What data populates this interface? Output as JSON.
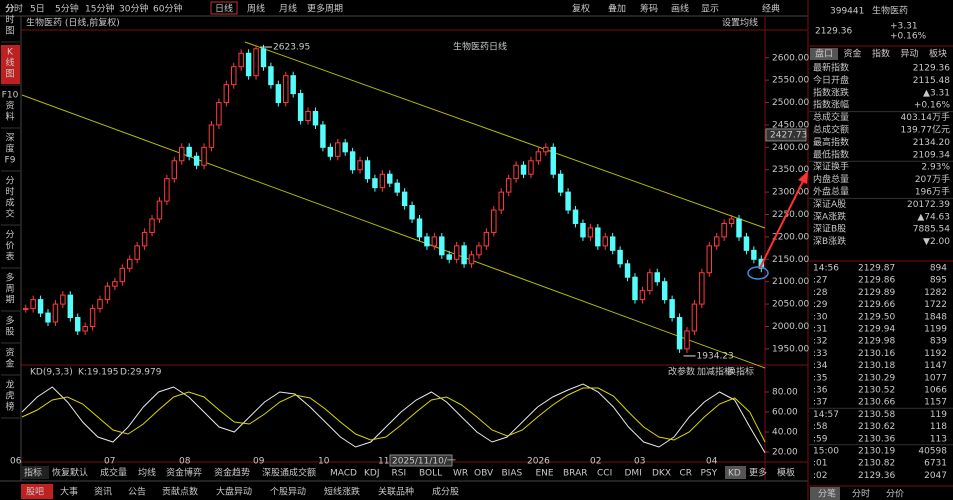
{
  "toolbar": {
    "left": [
      "分时",
      "5日",
      "5分钟",
      "15分钟",
      "30分钟",
      "60分钟",
      "日线",
      "周线",
      "月线",
      "更多周期"
    ],
    "right": [
      "复权",
      "叠加",
      "筹码",
      "画线",
      "显示",
      "经典"
    ]
  },
  "sidebar": [
    [
      "分",
      "时",
      "图"
    ],
    [
      "K",
      "线",
      "图"
    ],
    [
      "F10",
      "资",
      "料"
    ],
    [
      "深",
      "度",
      "F9"
    ],
    [
      "分",
      "时",
      "成",
      "交"
    ],
    [
      "分",
      "价",
      "表"
    ],
    [
      "多",
      "周",
      "期"
    ],
    [
      "多",
      "股"
    ],
    [
      "资",
      "金"
    ],
    [
      "龙",
      "虎",
      "榜"
    ]
  ],
  "chart": {
    "header": "生物医药 (日线,前复权)",
    "settings": "设置均线",
    "title": "生物医药日线",
    "price_label": 2427.73,
    "high_note": 2623.95,
    "low_note": 1934.23,
    "ylim": [
      1914,
      2662
    ],
    "yticks": [
      {
        "value": 1950,
        "label": "1950.00"
      },
      {
        "value": 2000,
        "label": "2000.00"
      },
      {
        "value": 2050,
        "label": "2050.00"
      },
      {
        "value": 2100,
        "label": "2100.00"
      },
      {
        "value": 2150,
        "label": "2150.00"
      },
      {
        "value": 2200,
        "label": "2200.00"
      },
      {
        "value": 2250,
        "label": "2250.00"
      },
      {
        "value": 2300,
        "label": "2300.00"
      },
      {
        "value": 2350,
        "label": "2350.00"
      },
      {
        "value": 2400,
        "label": "2400.00"
      },
      {
        "value": 2450,
        "label": "2450.00"
      },
      {
        "value": 2500,
        "label": "2500.00"
      },
      {
        "value": 2550,
        "label": "2550.00"
      },
      {
        "value": 2600,
        "label": "2600.00"
      }
    ],
    "up_color": "#ff3c3c",
    "down_color": "#54fcfc",
    "closes": [
      2040,
      2060,
      2030,
      2010,
      2050,
      2070,
      2020,
      1990,
      2000,
      2040,
      2060,
      2090,
      2100,
      2130,
      2150,
      2180,
      2210,
      2240,
      2280,
      2330,
      2370,
      2400,
      2380,
      2360,
      2400,
      2450,
      2500,
      2540,
      2580,
      2610,
      2560,
      2620,
      2580,
      2540,
      2500,
      2560,
      2520,
      2460,
      2480,
      2450,
      2400,
      2380,
      2410,
      2390,
      2350,
      2370,
      2330,
      2310,
      2340,
      2320,
      2300,
      2270,
      2240,
      2200,
      2180,
      2200,
      2160,
      2150,
      2180,
      2140,
      2160,
      2180,
      2210,
      2260,
      2300,
      2330,
      2360,
      2340,
      2370,
      2390,
      2400,
      2340,
      2300,
      2260,
      2230,
      2200,
      2220,
      2180,
      2200,
      2170,
      2140,
      2110,
      2060,
      2080,
      2120,
      2100,
      2060,
      2020,
      1950,
      1990,
      2050,
      2120,
      2180,
      2200,
      2230,
      2240,
      2200,
      2170,
      2150,
      2130
    ]
  },
  "kd": {
    "name": "KD(9,3,3)",
    "k_label": "K:19.195",
    "d_label": "D:29.979",
    "actions": [
      "改参数",
      "加减指标",
      "换指标"
    ],
    "ylim": [
      10,
      100
    ],
    "yticks": [
      {
        "value": 80,
        "label": "80.00"
      },
      {
        "value": 60,
        "label": "60.00"
      },
      {
        "value": 40,
        "label": "40.00"
      },
      {
        "value": 20,
        "label": "20.00"
      }
    ],
    "k_color": "#e8e8e8",
    "d_color": "#d8d800",
    "k": [
      60,
      75,
      85,
      70,
      50,
      35,
      30,
      45,
      65,
      80,
      85,
      75,
      60,
      45,
      40,
      55,
      70,
      80,
      78,
      65,
      50,
      35,
      25,
      30,
      45,
      60,
      72,
      80,
      70,
      55,
      40,
      30,
      35,
      50,
      65,
      75,
      82,
      88,
      80,
      65,
      45,
      30,
      25,
      35,
      55,
      70,
      80,
      72,
      45,
      19.195
    ],
    "d": [
      55,
      62,
      72,
      75,
      68,
      55,
      42,
      38,
      48,
      62,
      75,
      80,
      75,
      62,
      50,
      48,
      58,
      70,
      77,
      74,
      63,
      50,
      38,
      32,
      35,
      47,
      60,
      72,
      75,
      67,
      55,
      42,
      36,
      42,
      55,
      67,
      77,
      84,
      84,
      76,
      60,
      45,
      35,
      32,
      40,
      55,
      68,
      74,
      60,
      29.979
    ]
  },
  "x_labels": [
    "06",
    "07",
    "08",
    "09",
    "10",
    "11",
    "2025/11/10/一",
    "2026",
    "02",
    "03",
    "04"
  ],
  "indicator_tabs": [
    "指标",
    "恢复默认",
    "成交量",
    "均线",
    "资金博弈",
    "资金趋势",
    "深股通成交额",
    "MACD",
    "KDJ",
    "RSI",
    "BOLL",
    "WR",
    "OBV",
    "BIAS",
    "ENE",
    "BRAR",
    "CCI",
    "DMI",
    "DKX",
    "CR",
    "PSY",
    "KD",
    "更多",
    "模板"
  ],
  "bottom_tabs": [
    "股吧",
    "大事",
    "资讯",
    "公告",
    "贡献点数",
    "大盘异动",
    "个股异动",
    "短线涨跌",
    "关联品种",
    "成分股"
  ],
  "quote": {
    "code": "399441",
    "name": "生物医药",
    "price": "2129.36",
    "change": "+3.31",
    "pct": "+0.16%",
    "tabs": [
      "盘口",
      "资金",
      "指数",
      "异动",
      "板块"
    ],
    "rows": [
      [
        "最新指数",
        "2129.36"
      ],
      [
        "今日开盘",
        "2115.48"
      ],
      [
        "指数涨跌",
        "▲3.31"
      ],
      [
        "指数涨幅",
        "+0.16%"
      ],
      [
        "总成交量",
        "403.14万手"
      ],
      [
        "总成交额",
        "139.77亿元"
      ],
      [
        "最高指数",
        "2134.20"
      ],
      [
        "最低指数",
        "2109.34"
      ],
      [
        "深证换手",
        "2.93%"
      ],
      [
        "内盘总量",
        "207万手"
      ],
      [
        "外盘总量",
        "196万手"
      ],
      [
        "深证A股",
        "20172.39"
      ],
      [
        "深A涨跌",
        "▲74.63"
      ],
      [
        "深证B股",
        "7885.54"
      ],
      [
        "深B涨跌",
        "▼2.00"
      ]
    ],
    "ticks": [
      [
        "14:56",
        "2129.87",
        "894"
      ],
      [
        ":27",
        "2129.86",
        "895"
      ],
      [
        ":28",
        "2129.89",
        "1282"
      ],
      [
        ":29",
        "2129.66",
        "1722"
      ],
      [
        ":30",
        "2129.50",
        "1848"
      ],
      [
        ":31",
        "2129.94",
        "1199"
      ],
      [
        ":32",
        "2129.98",
        "839"
      ],
      [
        ":33",
        "2130.16",
        "1192"
      ],
      [
        ":34",
        "2130.18",
        "1147"
      ],
      [
        ":35",
        "2130.29",
        "1077"
      ],
      [
        ":36",
        "2130.52",
        "1066"
      ],
      [
        ":37",
        "2130.66",
        "1157"
      ],
      [
        "14:57",
        "2130.58",
        "119"
      ],
      [
        ":58",
        "2130.62",
        "118"
      ],
      [
        ":59",
        "2130.36",
        "113"
      ],
      [
        "15:00",
        "2130.19",
        "40598"
      ],
      [
        ":01",
        "2130.82",
        "6731"
      ],
      [
        ":02",
        "2129.36",
        "2047"
      ]
    ],
    "bottom_tabs": [
      "分笔",
      "分时",
      "分价"
    ]
  }
}
